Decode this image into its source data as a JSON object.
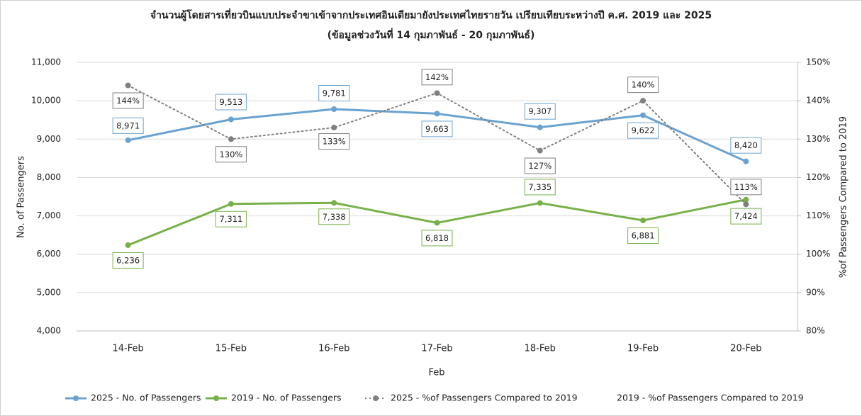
{
  "chart_data": {
    "type": "line",
    "title": "จำนวนผู้โดยสารเที่ยวบินแบบประจำขาเข้าจากประเทศอินเดียมายังประเทศไทยรายวัน เปรียบเทียบระหว่างปี ค.ศ. 2019 และ 2025",
    "subtitle": "(ข้อมูลช่วงวันที่ 14 กุมภาพันธ์ - 20 กุมภาพันธ์)",
    "x_label": "Feb",
    "y_label": "No. of Passengers",
    "y2_label": "%of Passengers Compared to 2019",
    "categories": [
      "14-Feb",
      "15-Feb",
      "16-Feb",
      "17-Feb",
      "18-Feb",
      "19-Feb",
      "20-Feb"
    ],
    "series": [
      {
        "name": "2025 - No. of Passengers",
        "color": "#6aa2cf",
        "style": "solid",
        "values": [
          8971,
          9513,
          9781,
          9663,
          9307,
          9622,
          8420
        ],
        "value_labels": [
          "8,971",
          "9,513",
          "9,781",
          "9,663",
          "9,307",
          "9,622",
          "8,420"
        ]
      },
      {
        "name": "2019 - No. of Passengers",
        "color": "#78b04a",
        "style": "solid",
        "values": [
          6236,
          7311,
          7338,
          6818,
          7335,
          6881,
          7424
        ],
        "value_labels": [
          "6,236",
          "7,311",
          "7,338",
          "6,818",
          "7,335",
          "6,881",
          "7,424"
        ]
      },
      {
        "name": "2025 - %of Passengers Compared to 2019",
        "color": "#808080",
        "style": "dotted",
        "axis": "y2",
        "values": [
          144,
          130,
          133,
          142,
          127,
          140,
          113
        ],
        "value_labels": [
          "144%",
          "130%",
          "133%",
          "142%",
          "127%",
          "140%",
          "113%"
        ]
      },
      {
        "name": "2019 - %of Passengers Compared to 2019",
        "axis": "y2",
        "values": [
          null,
          null,
          null,
          null,
          null,
          null,
          null
        ]
      }
    ],
    "ylim": [
      4000,
      11000
    ],
    "yticks": [
      {
        "value": 4000,
        "label": "4,000"
      },
      {
        "value": 5000,
        "label": "5,000"
      },
      {
        "value": 6000,
        "label": "6,000"
      },
      {
        "value": 7000,
        "label": "7,000"
      },
      {
        "value": 8000,
        "label": "8,000"
      },
      {
        "value": 9000,
        "label": "9,000"
      },
      {
        "value": 10000,
        "label": "10,000"
      },
      {
        "value": 11000,
        "label": "11,000"
      }
    ],
    "y2lim": [
      80,
      150
    ],
    "y2ticks": [
      {
        "value": 80,
        "label": "80%"
      },
      {
        "value": 90,
        "label": "90%"
      },
      {
        "value": 100,
        "label": "100%"
      },
      {
        "value": 110,
        "label": "110%"
      },
      {
        "value": 120,
        "label": "120%"
      },
      {
        "value": 130,
        "label": "130%"
      },
      {
        "value": 140,
        "label": "140%"
      },
      {
        "value": 150,
        "label": "150%"
      }
    ],
    "grid": true,
    "legend": "bottom"
  }
}
